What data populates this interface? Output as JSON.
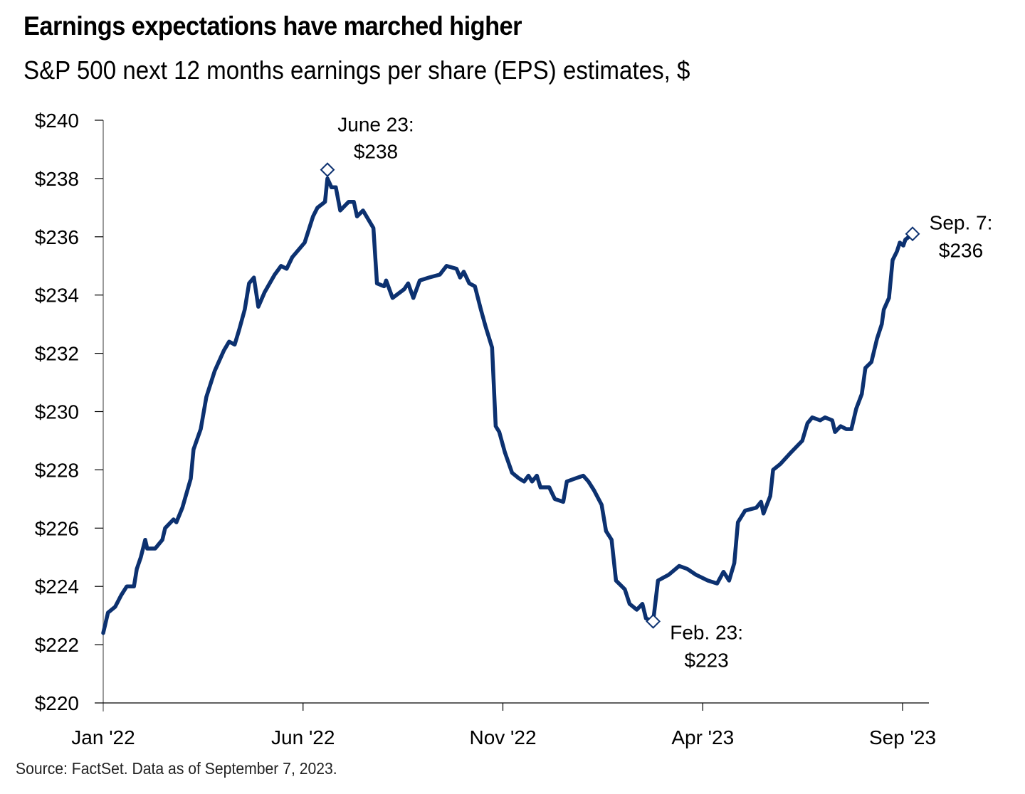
{
  "header": {
    "title": "Earnings expectations have marched higher",
    "subtitle": "S&P 500 next 12 months earnings per share (EPS) estimates, $"
  },
  "footer": {
    "source": "Source: FactSet. Data as of September 7, 2023."
  },
  "colors": {
    "line": "#0c3170",
    "axis": "#000000",
    "y_axis_line": "#9a9a9a",
    "marker_fill": "#ffffff"
  },
  "chart_data": {
    "type": "line",
    "title": "Earnings expectations have marched higher",
    "subtitle": "S&P 500 next 12 months earnings per share (EPS) estimates, $",
    "xlabel": "",
    "ylabel": "",
    "x_unit": "months since Jan 1, 2022",
    "xlim": [
      0,
      20.65
    ],
    "ylim": [
      220,
      240
    ],
    "grid": false,
    "legend": "none",
    "y_ticks": [
      {
        "value": 240,
        "label": "$240"
      },
      {
        "value": 238,
        "label": "$238"
      },
      {
        "value": 236,
        "label": "$236"
      },
      {
        "value": 234,
        "label": "$234"
      },
      {
        "value": 232,
        "label": "$232"
      },
      {
        "value": 230,
        "label": "$230"
      },
      {
        "value": 228,
        "label": "$228"
      },
      {
        "value": 226,
        "label": "$226"
      },
      {
        "value": 224,
        "label": "$224"
      },
      {
        "value": 222,
        "label": "$222"
      },
      {
        "value": 220,
        "label": "$220"
      }
    ],
    "x_ticks": [
      {
        "value": 0,
        "label": "Jan '22"
      },
      {
        "value": 5,
        "label": "Jun '22"
      },
      {
        "value": 10,
        "label": "Nov '22"
      },
      {
        "value": 15,
        "label": "Apr '23"
      },
      {
        "value": 20,
        "label": "Sep '23"
      }
    ],
    "series": [
      {
        "name": "S&P 500 NTM EPS estimate",
        "x": [
          0,
          0.12,
          0.3,
          0.45,
          0.59,
          0.77,
          0.84,
          0.94,
          1.05,
          1.1,
          1.3,
          1.48,
          1.55,
          1.76,
          1.83,
          1.98,
          2.19,
          2.26,
          2.44,
          2.58,
          2.79,
          3.02,
          3.15,
          3.29,
          3.4,
          3.54,
          3.65,
          3.77,
          3.88,
          4.04,
          4.29,
          4.45,
          4.59,
          4.73,
          5.04,
          5.25,
          5.36,
          5.55,
          5.61,
          5.71,
          5.82,
          5.93,
          6.14,
          6.27,
          6.35,
          6.5,
          6.76,
          6.85,
          7.03,
          7.08,
          7.24,
          7.53,
          7.63,
          7.76,
          7.92,
          8.15,
          8.42,
          8.59,
          8.84,
          8.93,
          9.02,
          9.16,
          9.3,
          9.45,
          9.57,
          9.73,
          9.82,
          9.91,
          10.05,
          10.23,
          10.41,
          10.53,
          10.64,
          10.73,
          10.85,
          10.94,
          11.16,
          11.3,
          11.51,
          11.6,
          11.8,
          12.01,
          12.14,
          12.28,
          12.47,
          12.58,
          12.72,
          12.83,
          13.05,
          13.17,
          13.35,
          13.49,
          13.58,
          13.76,
          13.88,
          14.15,
          14.41,
          14.61,
          14.83,
          15.13,
          15.36,
          15.52,
          15.66,
          15.79,
          15.88,
          16.06,
          16.34,
          16.46,
          16.52,
          16.69,
          16.76,
          16.94,
          17.21,
          17.49,
          17.62,
          17.74,
          17.94,
          18.06,
          18.24,
          18.31,
          18.45,
          18.59,
          18.72,
          18.84,
          18.98,
          19.07,
          19.22,
          19.36,
          19.48,
          19.53,
          19.66,
          19.75,
          19.86,
          19.93,
          20.02,
          20.07,
          20.25
        ],
        "values": [
          222.4,
          223.1,
          223.3,
          223.7,
          224.0,
          224.0,
          224.6,
          225.0,
          225.6,
          225.3,
          225.3,
          225.6,
          226.0,
          226.3,
          226.2,
          226.7,
          227.7,
          228.7,
          229.4,
          230.5,
          231.4,
          232.1,
          232.4,
          232.3,
          232.8,
          233.5,
          234.4,
          234.6,
          233.6,
          234.1,
          234.7,
          235.0,
          234.9,
          235.3,
          235.8,
          236.7,
          237.0,
          237.2,
          238.0,
          237.7,
          237.7,
          236.9,
          237.2,
          237.2,
          236.7,
          236.9,
          236.3,
          234.4,
          234.3,
          234.5,
          233.9,
          234.2,
          234.4,
          233.9,
          234.5,
          234.6,
          234.7,
          235.0,
          234.9,
          234.6,
          234.8,
          234.4,
          234.3,
          233.5,
          232.9,
          232.2,
          229.5,
          229.3,
          228.6,
          227.9,
          227.7,
          227.6,
          227.8,
          227.6,
          227.8,
          227.4,
          227.4,
          227.0,
          226.9,
          227.6,
          227.7,
          227.8,
          227.6,
          227.3,
          226.8,
          225.9,
          225.6,
          224.2,
          223.9,
          223.4,
          223.2,
          223.4,
          222.9,
          222.8,
          224.2,
          224.4,
          224.7,
          224.6,
          224.4,
          224.2,
          224.1,
          224.5,
          224.2,
          224.8,
          226.2,
          226.6,
          226.7,
          226.9,
          226.5,
          227.1,
          228.0,
          228.2,
          228.6,
          229.0,
          229.6,
          229.8,
          229.7,
          229.8,
          229.7,
          229.3,
          229.5,
          229.4,
          229.4,
          230.1,
          230.6,
          231.5,
          231.7,
          232.5,
          233.0,
          233.5,
          233.9,
          235.2,
          235.5,
          235.8,
          235.7,
          235.9,
          236.1
        ]
      }
    ],
    "annotations": [
      {
        "name": "peak",
        "x": 5.61,
        "value": 238.3,
        "line1": "June 23:",
        "line2": "$238",
        "position": "above-right"
      },
      {
        "name": "trough",
        "x": 13.76,
        "value": 222.8,
        "line1": "Feb. 23:",
        "line2": "$223",
        "position": "below-right"
      },
      {
        "name": "latest",
        "x": 20.25,
        "value": 236.1,
        "line1": "Sep. 7:",
        "line2": "$236",
        "position": "right"
      }
    ]
  }
}
